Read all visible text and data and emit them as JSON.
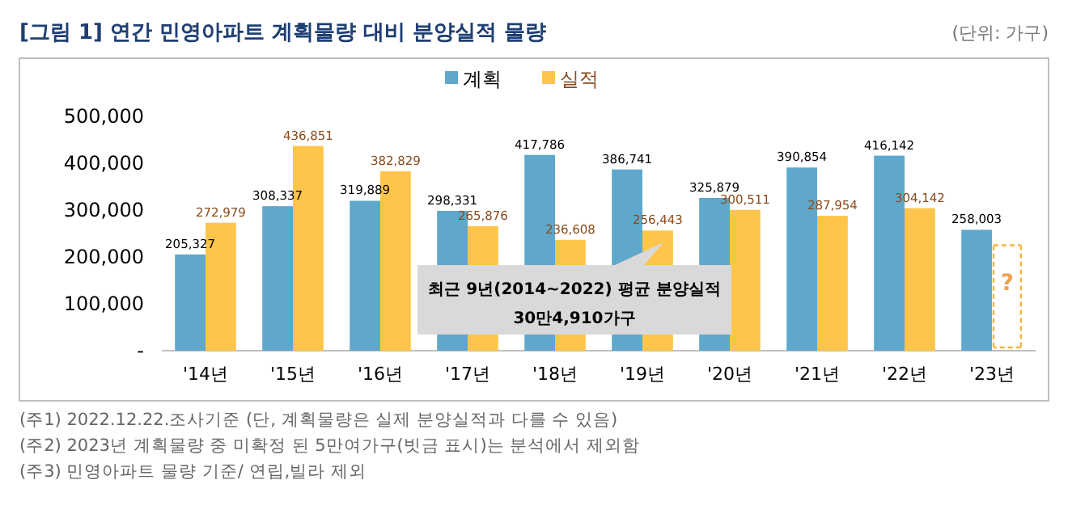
{
  "chart_data": {
    "type": "bar",
    "title": "[그림 1] 연간 민영아파트 계획물량 대비 분양실적 물량",
    "categories": [
      "'14년",
      "'15년",
      "'16년",
      "'17년",
      "'18년",
      "'19년",
      "'20년",
      "'21년",
      "'22년",
      "'23년"
    ],
    "series": [
      {
        "name": "계획",
        "color": "#5fa8cc",
        "values": [
          205327,
          308337,
          319889,
          298331,
          417786,
          386741,
          325879,
          390854,
          416142,
          258003
        ],
        "value_labels": [
          "205,327",
          "308,337",
          "319,889",
          "298,331",
          "417,786",
          "386,741",
          "325,879",
          "390,854",
          "416,142",
          "258,003"
        ]
      },
      {
        "name": "실적",
        "color": "#ffc54a",
        "values": [
          272979,
          436851,
          382829,
          265876,
          236608,
          256443,
          300511,
          287954,
          304142,
          null
        ],
        "value_labels": [
          "272,979",
          "436,851",
          "382,829",
          "265,876",
          "236,608",
          "256,443",
          "300,511",
          "287,954",
          "304,142",
          null
        ]
      }
    ],
    "ylim": [
      0,
      500000
    ],
    "yticks": [
      {
        "value": 0,
        "label": "-"
      },
      {
        "value": 100000,
        "label": "100,000"
      },
      {
        "value": 200000,
        "label": "200,000"
      },
      {
        "value": 300000,
        "label": "300,000"
      },
      {
        "value": 400000,
        "label": "400,000"
      },
      {
        "value": 500000,
        "label": "500,000"
      }
    ],
    "legend": "top",
    "grid": false,
    "annotations": [
      "(단위: 가구)",
      "최근 9년(2014~2022) 평균 분양실적",
      "30만4,910가구",
      "(주1) 2022.12.22.조사기준 (단, 계획물량은 실제 분양실적과 다를 수 있음)",
      "(주2) 2023년 계획물량 중 미확정 된 5만여가구(빗금 표시)는 분석에서 제외함",
      "(주3) 민영아파트 물량 기준/ 연립,빌라 제외",
      {
        "text": "?",
        "x": "'23년",
        "y": 150000
      }
    ]
  }
}
